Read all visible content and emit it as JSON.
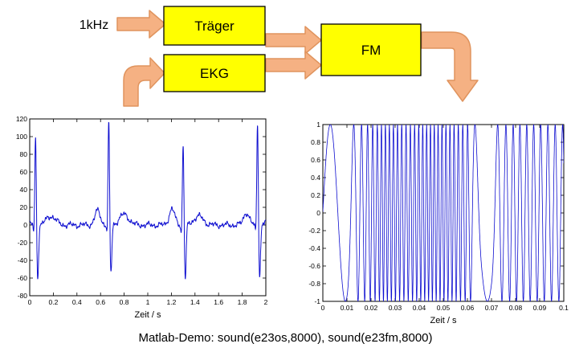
{
  "diagram": {
    "input_label": "1kHz",
    "boxes": {
      "traeger": "Träger",
      "ekg": "EKG",
      "fm": "FM"
    },
    "colors": {
      "box_fill": "#ffff00",
      "box_border": "#000000",
      "arrow_fill": "#f5b183",
      "arrow_border": "#e0945e"
    }
  },
  "caption": "Matlab-Demo:  sound(e23os,8000), sound(e23fm,8000)",
  "chart_data": [
    {
      "id": "ekg",
      "type": "line",
      "title": "",
      "xlabel": "Zeit / s",
      "ylabel": "",
      "xlim": [
        0,
        2
      ],
      "ylim": [
        -80,
        120
      ],
      "xticks": [
        0,
        0.2,
        0.4,
        0.6,
        0.8,
        1,
        1.2,
        1.4,
        1.6,
        1.8,
        2
      ],
      "yticks": [
        -80,
        -60,
        -40,
        -20,
        0,
        20,
        40,
        60,
        80,
        100,
        120
      ],
      "grid": false,
      "legend": null,
      "line_color": "#0f0fd0",
      "line_width": 1,
      "signal": {
        "kind": "ecg",
        "baseline": 0,
        "noise_amplitude": 2.5,
        "beats": [
          {
            "t": 0.05,
            "p": 10,
            "q": -12,
            "r": 103,
            "s": -62,
            "tw": 10
          },
          {
            "t": 0.67,
            "p": 16,
            "q": -12,
            "r": 120,
            "s": -58,
            "tw": 12
          },
          {
            "t": 1.3,
            "p": 18,
            "q": -12,
            "r": 97,
            "s": -63,
            "tw": 10
          },
          {
            "t": 1.93,
            "p": 14,
            "q": -12,
            "r": 120,
            "s": -60,
            "tw": 10
          }
        ]
      }
    },
    {
      "id": "fm",
      "type": "line",
      "title": "",
      "xlabel": "Zeit / s",
      "ylabel": "",
      "xlim": [
        0,
        0.1
      ],
      "ylim": [
        -1,
        1
      ],
      "xticks": [
        0,
        0.01,
        0.02,
        0.03,
        0.04,
        0.05,
        0.06,
        0.07,
        0.08,
        0.09,
        0.1
      ],
      "yticks": [
        -1,
        -0.8,
        -0.6,
        -0.4,
        -0.2,
        0,
        0.2,
        0.4,
        0.6,
        0.8,
        1
      ],
      "grid": false,
      "legend": null,
      "line_color": "#0f0fd0",
      "line_width": 0.8,
      "signal": {
        "kind": "fm",
        "amplitude": 1,
        "freq_profile": [
          [
            0,
            80
          ],
          [
            0.01,
            80
          ],
          [
            0.014,
            300
          ],
          [
            0.02,
            480
          ],
          [
            0.025,
            620
          ],
          [
            0.035,
            550
          ],
          [
            0.045,
            640
          ],
          [
            0.055,
            580
          ],
          [
            0.06,
            480
          ],
          [
            0.063,
            200
          ],
          [
            0.066,
            60
          ],
          [
            0.07,
            60
          ],
          [
            0.073,
            280
          ],
          [
            0.08,
            360
          ],
          [
            0.09,
            340
          ],
          [
            0.1,
            320
          ]
        ]
      }
    }
  ]
}
